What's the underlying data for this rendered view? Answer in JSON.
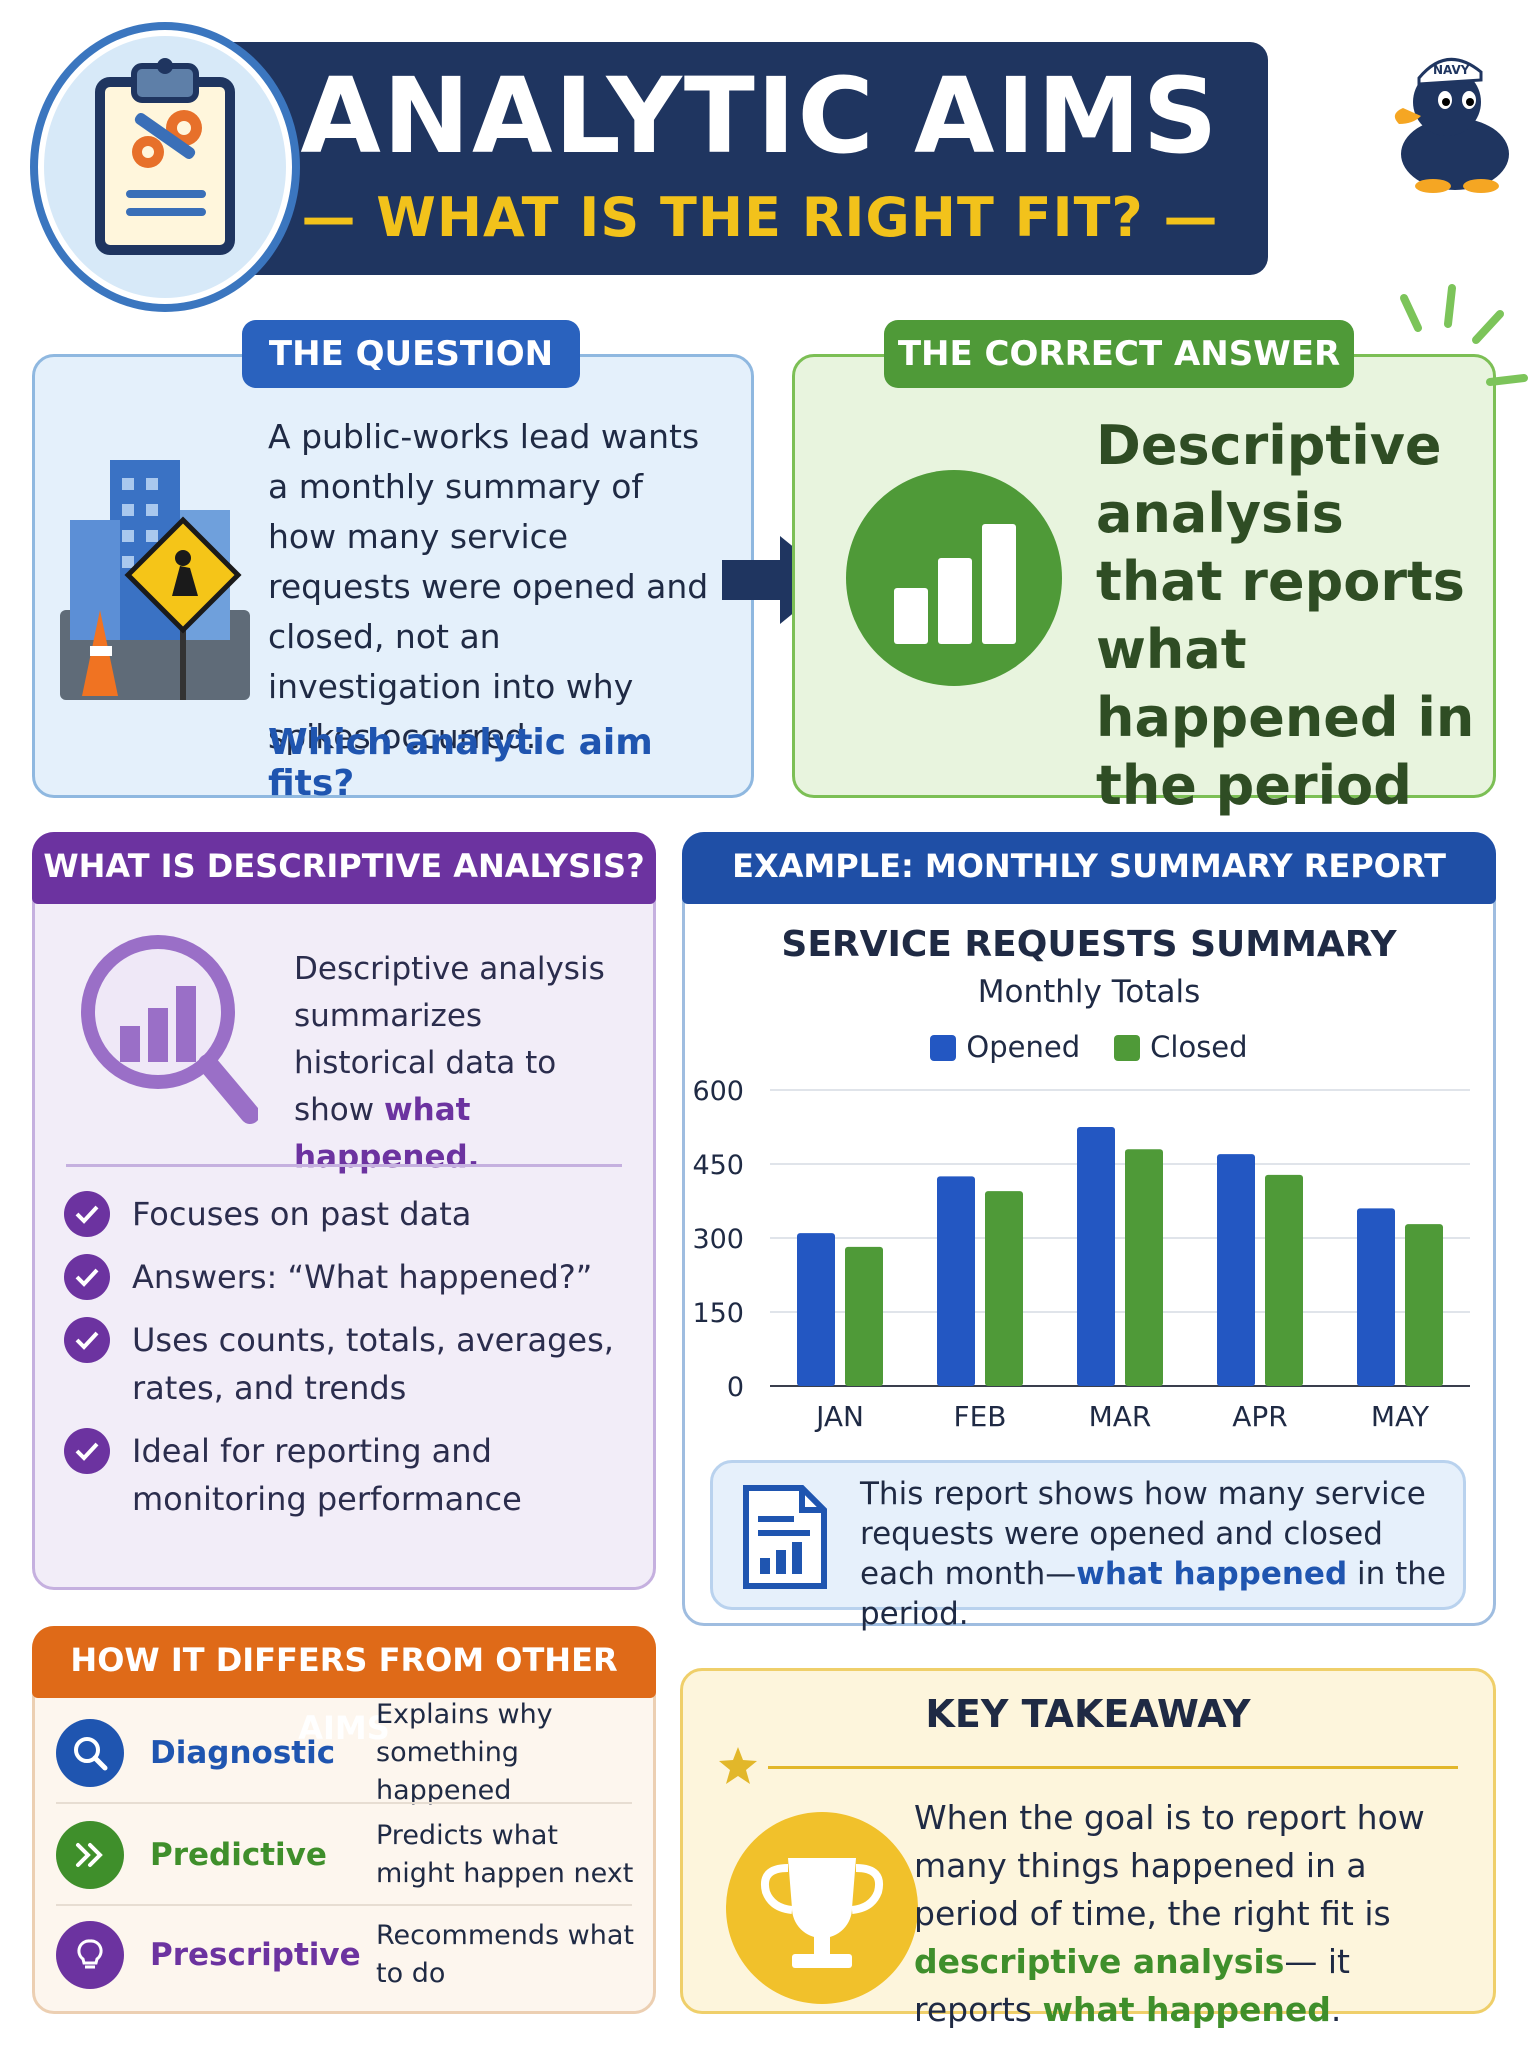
{
  "header": {
    "title": "ANALYTIC AIMS",
    "subtitle": "— WHAT IS THE RIGHT FIT? —",
    "mascot_hat": "NAVY"
  },
  "question": {
    "label": "THE QUESTION",
    "body": "A public-works lead wants a monthly summary of how many service requests were opened and closed, not an investigation into why spikes occurred.",
    "ask": "Which analytic aim fits?"
  },
  "answer": {
    "label": "THE CORRECT ANSWER",
    "text": "Descriptive analysis that reports what happened in the period"
  },
  "descriptive": {
    "header": "WHAT IS DESCRIPTIVE ANALYSIS?",
    "text_pre": "Descriptive analysis summarizes historical data to show ",
    "text_em": "what happened.",
    "points": [
      "Focuses on past data",
      "Answers: “What happened?”",
      "Uses counts, totals, averages, rates, and trends",
      "Ideal for reporting and monitoring performance"
    ]
  },
  "example": {
    "header": "EXAMPLE: MONTHLY SUMMARY REPORT",
    "note_pre": "This report shows how many service requests were opened and closed each month—",
    "note_em": "what happened",
    "note_post": " in the period."
  },
  "chart_data": {
    "type": "bar",
    "title": "SERVICE REQUESTS SUMMARY",
    "subtitle": "Monthly Totals",
    "categories": [
      "JAN",
      "FEB",
      "MAR",
      "APR",
      "MAY"
    ],
    "series": [
      {
        "name": "Opened",
        "values": [
          310,
          425,
          525,
          470,
          360
        ],
        "color": "#2357c2"
      },
      {
        "name": "Closed",
        "values": [
          282,
          395,
          480,
          428,
          328
        ],
        "color": "#4f9a38"
      }
    ],
    "yticks": [
      "0",
      "150",
      "300",
      "450",
      "600"
    ],
    "ylim": [
      0,
      600
    ],
    "legend_position": "top-center",
    "grid": true
  },
  "differs": {
    "header": "HOW IT DIFFERS FROM OTHER AIMS",
    "rows": [
      {
        "name": "Diagnostic",
        "desc": "Explains why something happened",
        "color": "#1f55b0",
        "icon": "search-icon"
      },
      {
        "name": "Predictive",
        "desc": "Predicts what might happen next",
        "color": "#3f8f2b",
        "icon": "forward-arrows-icon"
      },
      {
        "name": "Prescriptive",
        "desc": "Recommends what to do",
        "color": "#6c33a0",
        "icon": "lightbulb-icon"
      }
    ]
  },
  "takeaway": {
    "title": "KEY TAKEAWAY",
    "pre": "When the goal is to report how many things happened in a period of time, the right fit is ",
    "em1": "descriptive analysis",
    "mid": "— it reports ",
    "em2": "what happened",
    "post": "."
  },
  "colors": {
    "navy": "#1f3560",
    "gold": "#f2c21b",
    "blue": "#2a62be",
    "green": "#4f9a38",
    "purple": "#6c33a0",
    "orange": "#df6a18"
  }
}
